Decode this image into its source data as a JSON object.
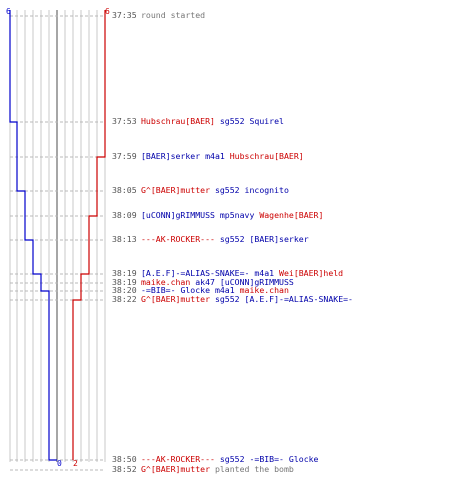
{
  "colors": {
    "blue_team": "#0000cc",
    "red_team": "#cc0000",
    "grid": "#c8c8c8",
    "center_line": "#888888",
    "time_text": "#555555",
    "event_text": "#777777"
  },
  "scores": {
    "blue_start": "6",
    "red_start": "6",
    "blue_end": "0",
    "red_end": "2"
  },
  "events": [
    {
      "time": "37:35",
      "parts": [
        {
          "t": "round started",
          "k": "grey"
        }
      ]
    },
    {
      "time": "37:53",
      "parts": [
        {
          "t": "Hubschrau[BAER]",
          "k": "red"
        },
        {
          "t": " sg552 ",
          "k": "blue"
        },
        {
          "t": "Squirel",
          "k": "blue"
        }
      ]
    },
    {
      "time": "37:59",
      "parts": [
        {
          "t": "[BAER]serker",
          "k": "blue"
        },
        {
          "t": " m4a1 ",
          "k": "blue"
        },
        {
          "t": "Hubschrau[BAER]",
          "k": "red"
        }
      ]
    },
    {
      "time": "38:05",
      "parts": [
        {
          "t": "G^[BAER]mutter",
          "k": "red"
        },
        {
          "t": " sg552 ",
          "k": "blue"
        },
        {
          "t": "incognito",
          "k": "blue"
        }
      ]
    },
    {
      "time": "38:09",
      "parts": [
        {
          "t": "[uCONN]gRIMMUSS",
          "k": "blue"
        },
        {
          "t": " mp5navy ",
          "k": "blue"
        },
        {
          "t": "Wagenhe[BAER]",
          "k": "red"
        }
      ]
    },
    {
      "time": "38:13",
      "parts": [
        {
          "t": "---AK-ROCKER---",
          "k": "red"
        },
        {
          "t": " sg552 ",
          "k": "blue"
        },
        {
          "t": "[BAER]serker",
          "k": "blue"
        }
      ]
    },
    {
      "time": "38:19",
      "parts": [
        {
          "t": "[A.E.F]-=ALIAS-SNAKE=-",
          "k": "blue"
        },
        {
          "t": " m4a1 ",
          "k": "blue"
        },
        {
          "t": "Wei[BAER]held",
          "k": "red"
        }
      ]
    },
    {
      "time": "38:19",
      "parts": [
        {
          "t": "maike.chan",
          "k": "red"
        },
        {
          "t": " ak47 ",
          "k": "blue"
        },
        {
          "t": "[uCONN]gRIMMUSS",
          "k": "blue"
        }
      ]
    },
    {
      "time": "38:20",
      "parts": [
        {
          "t": "-=BIB=-",
          "k": "blue"
        },
        {
          "t": " Glocke ",
          "k": "blue"
        },
        {
          "t": "m4a1 ",
          "k": "blue"
        },
        {
          "t": "maike.chan",
          "k": "red"
        }
      ]
    },
    {
      "time": "38:22",
      "parts": [
        {
          "t": "G^[BAER]mutter",
          "k": "red"
        },
        {
          "t": " sg552 ",
          "k": "blue"
        },
        {
          "t": "[A.E.F]-=ALIAS-SNAKE=-",
          "k": "blue"
        }
      ]
    },
    {
      "time": "38:50",
      "parts": [
        {
          "t": "---AK-ROCKER---",
          "k": "red"
        },
        {
          "t": " sg552 ",
          "k": "blue"
        },
        {
          "t": "-=BIB=- Glocke",
          "k": "blue"
        }
      ]
    },
    {
      "time": "38:52",
      "parts": [
        {
          "t": "G^[BAER]mutter",
          "k": "red"
        },
        {
          "t": " planted the bomb",
          "k": "grey"
        }
      ]
    }
  ]
}
